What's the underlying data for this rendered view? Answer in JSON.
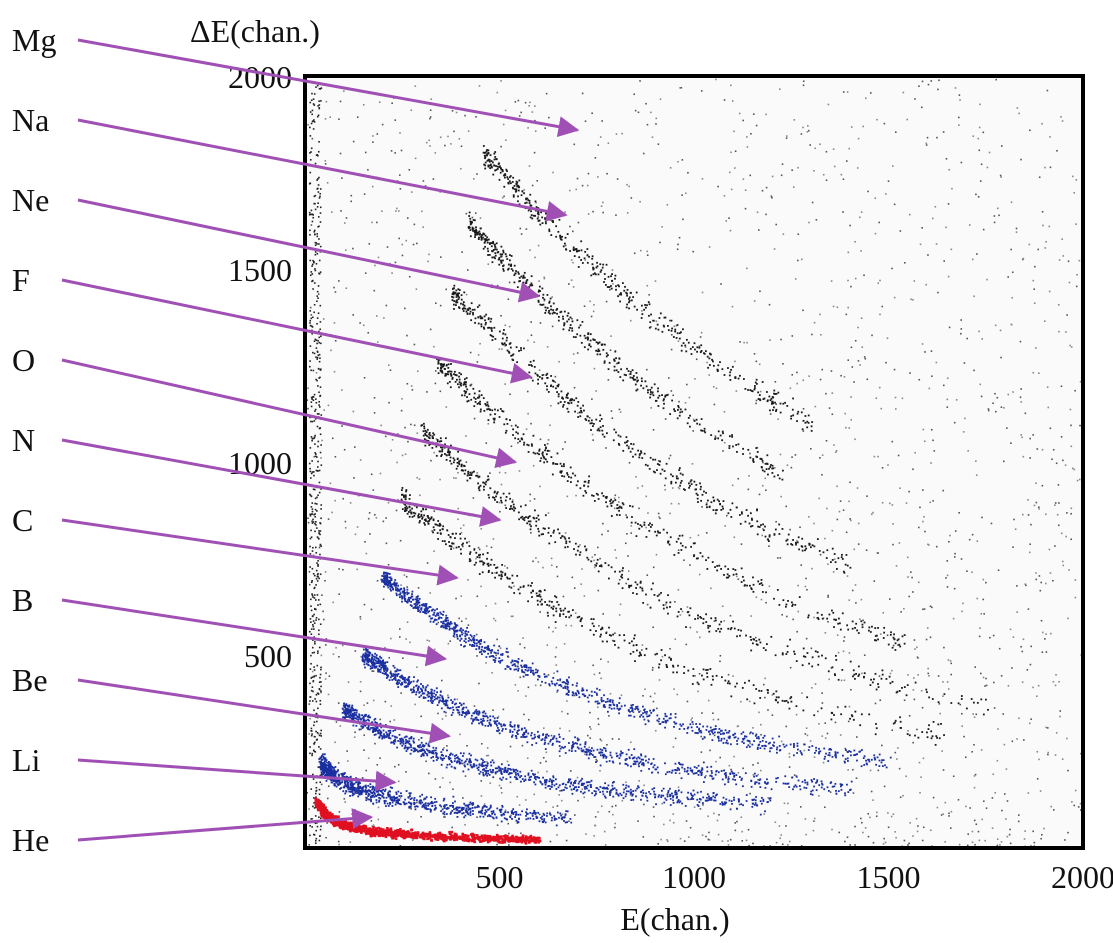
{
  "chart_data": {
    "type": "scatter",
    "title": "",
    "xlabel": "E(chan.)",
    "ylabel": "ΔE(chan.)",
    "xlim": [
      0,
      2000
    ],
    "ylim": [
      0,
      2000
    ],
    "xticks": [
      "500",
      "1000",
      "1500",
      "2000"
    ],
    "yticks": [
      "500",
      "1000",
      "1500",
      "2000"
    ],
    "xtick_values": [
      500,
      1000,
      1500,
      2000
    ],
    "ytick_values": [
      500,
      1000,
      1500,
      2000
    ],
    "grid": false,
    "colors": {
      "arrow": "#a050b4",
      "heavy_points": "#1a1a1a",
      "dense_band": "#1a2fa0",
      "he_band": "#e01020"
    },
    "annotations": [
      {
        "label": "Mg",
        "pointing_to": [
          700,
          1860
        ]
      },
      {
        "label": "Na",
        "pointing_to": [
          670,
          1640
        ]
      },
      {
        "label": "Ne",
        "pointing_to": [
          600,
          1430
        ]
      },
      {
        "label": "F",
        "pointing_to": [
          580,
          1220
        ]
      },
      {
        "label": "O",
        "pointing_to": [
          540,
          1000
        ]
      },
      {
        "label": "N",
        "pointing_to": [
          500,
          850
        ]
      },
      {
        "label": "C",
        "pointing_to": [
          390,
          700
        ]
      },
      {
        "label": "B",
        "pointing_to": [
          360,
          490
        ]
      },
      {
        "label": "Be",
        "pointing_to": [
          370,
          290
        ]
      },
      {
        "label": "Li",
        "pointing_to": [
          230,
          170
        ]
      },
      {
        "label": "He",
        "pointing_to": [
          170,
          80
        ]
      }
    ],
    "series": [
      {
        "key": "He",
        "color_role": "he_band",
        "points": [
          [
            30,
            120
          ],
          [
            50,
            90
          ],
          [
            80,
            70
          ],
          [
            120,
            55
          ],
          [
            180,
            45
          ],
          [
            260,
            38
          ],
          [
            360,
            32
          ],
          [
            480,
            28
          ],
          [
            600,
            25
          ]
        ]
      },
      {
        "key": "Li",
        "color_role": "dense_band",
        "points": [
          [
            40,
            220
          ],
          [
            80,
            180
          ],
          [
            150,
            150
          ],
          [
            250,
            125
          ],
          [
            380,
            105
          ],
          [
            520,
            90
          ],
          [
            680,
            78
          ]
        ]
      },
      {
        "key": "Be",
        "color_role": "dense_band",
        "points": [
          [
            100,
            360
          ],
          [
            200,
            300
          ],
          [
            320,
            250
          ],
          [
            460,
            210
          ],
          [
            620,
            175
          ],
          [
            800,
            150
          ],
          [
            1000,
            130
          ],
          [
            1200,
            115
          ]
        ]
      },
      {
        "key": "B",
        "color_role": "dense_band",
        "points": [
          [
            150,
            500
          ],
          [
            260,
            430
          ],
          [
            400,
            360
          ],
          [
            560,
            300
          ],
          [
            740,
            250
          ],
          [
            940,
            210
          ],
          [
            1150,
            180
          ],
          [
            1400,
            155
          ]
        ]
      },
      {
        "key": "C",
        "color_role": "dense_band",
        "points": [
          [
            200,
            700
          ],
          [
            320,
            610
          ],
          [
            460,
            520
          ],
          [
            620,
            440
          ],
          [
            800,
            370
          ],
          [
            1000,
            310
          ],
          [
            1220,
            265
          ],
          [
            1500,
            225
          ]
        ]
      },
      {
        "key": "N",
        "color_role": "heavy_points",
        "points": [
          [
            250,
            900
          ],
          [
            380,
            800
          ],
          [
            530,
            690
          ],
          [
            700,
            590
          ],
          [
            890,
            500
          ],
          [
            1100,
            420
          ],
          [
            1350,
            350
          ],
          [
            1650,
            290
          ]
        ]
      },
      {
        "key": "O",
        "color_role": "heavy_points",
        "points": [
          [
            300,
            1080
          ],
          [
            440,
            960
          ],
          [
            600,
            840
          ],
          [
            780,
            720
          ],
          [
            980,
            610
          ],
          [
            1200,
            520
          ],
          [
            1450,
            440
          ],
          [
            1750,
            370
          ]
        ]
      },
      {
        "key": "F",
        "color_role": "heavy_points",
        "points": [
          [
            340,
            1260
          ],
          [
            490,
            1120
          ],
          [
            660,
            980
          ],
          [
            850,
            850
          ],
          [
            1060,
            730
          ],
          [
            1300,
            620
          ],
          [
            1560,
            530
          ]
        ]
      },
      {
        "key": "Ne",
        "color_role": "heavy_points",
        "points": [
          [
            380,
            1440
          ],
          [
            540,
            1280
          ],
          [
            720,
            1120
          ],
          [
            920,
            980
          ],
          [
            1140,
            850
          ],
          [
            1400,
            730
          ]
        ]
      },
      {
        "key": "Na",
        "color_role": "heavy_points",
        "points": [
          [
            420,
            1620
          ],
          [
            590,
            1440
          ],
          [
            780,
            1270
          ],
          [
            990,
            1110
          ],
          [
            1230,
            970
          ]
        ]
      },
      {
        "key": "Mg",
        "color_role": "heavy_points",
        "points": [
          [
            460,
            1800
          ],
          [
            640,
            1600
          ],
          [
            840,
            1420
          ],
          [
            1060,
            1250
          ],
          [
            1300,
            1100
          ]
        ]
      }
    ]
  }
}
